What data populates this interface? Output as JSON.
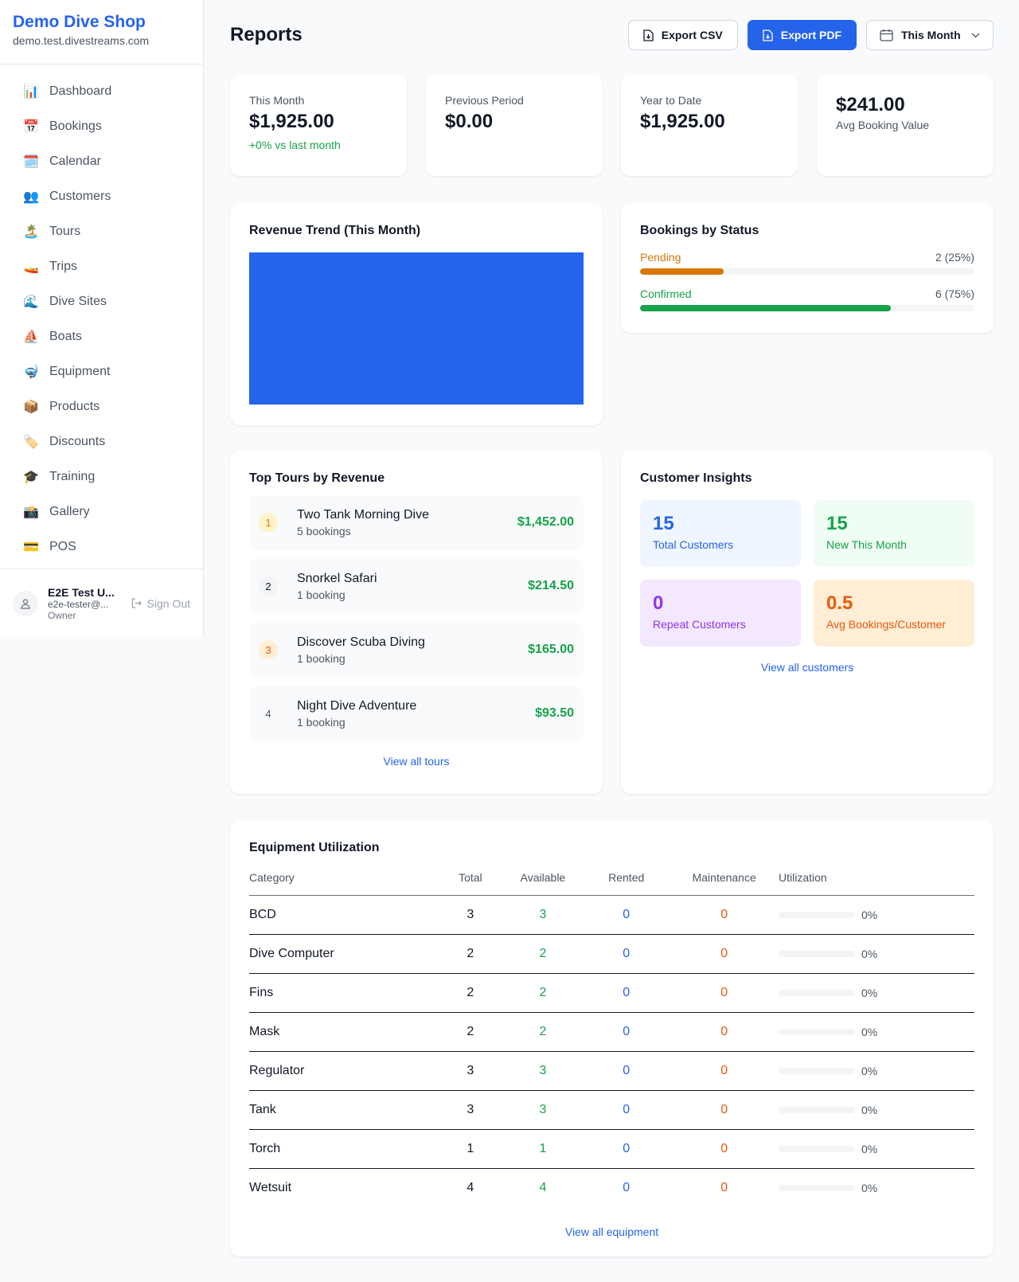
{
  "sidebar": {
    "shop_name": "Demo Dive Shop",
    "domain": "demo.test.divestreams.com",
    "items": [
      {
        "label": "Dashboard",
        "icon": "📊"
      },
      {
        "label": "Bookings",
        "icon": "📅"
      },
      {
        "label": "Calendar",
        "icon": "🗓️"
      },
      {
        "label": "Customers",
        "icon": "👥"
      },
      {
        "label": "Tours",
        "icon": "🏝️"
      },
      {
        "label": "Trips",
        "icon": "🚤"
      },
      {
        "label": "Dive Sites",
        "icon": "🌊"
      },
      {
        "label": "Boats",
        "icon": "⛵"
      },
      {
        "label": "Equipment",
        "icon": "🤿"
      },
      {
        "label": "Products",
        "icon": "📦"
      },
      {
        "label": "Discounts",
        "icon": "🏷️"
      },
      {
        "label": "Training",
        "icon": "🎓"
      },
      {
        "label": "Gallery",
        "icon": "📸"
      },
      {
        "label": "POS",
        "icon": "💳"
      }
    ],
    "user": {
      "name": "E2E Test U...",
      "email": "e2e-tester@...",
      "role": "Owner",
      "sign_out": "Sign Out"
    }
  },
  "header": {
    "title": "Reports",
    "export_csv": "Export CSV",
    "export_pdf": "Export PDF",
    "period": "This Month"
  },
  "stats": [
    {
      "label": "This Month",
      "value": "$1,925.00",
      "change": "+0% vs last month"
    },
    {
      "label": "Previous Period",
      "value": "$0.00"
    },
    {
      "label": "Year to Date",
      "value": "$1,925.00"
    },
    {
      "value": "$241.00",
      "label": "Avg Booking Value"
    }
  ],
  "revenue_trend": {
    "title": "Revenue Trend (This Month)",
    "bar_color": "#2563eb"
  },
  "bookings_status": {
    "title": "Bookings by Status",
    "rows": [
      {
        "label": "Pending",
        "count": "2 (25%)",
        "percent": 25,
        "color": "#d97706"
      },
      {
        "label": "Confirmed",
        "count": "6 (75%)",
        "percent": 75,
        "color": "#16a34a"
      }
    ]
  },
  "top_tours": {
    "title": "Top Tours by Revenue",
    "link": "View all tours",
    "items": [
      {
        "rank": "1",
        "name": "Two Tank Morning Dive",
        "bookings": "5 bookings",
        "revenue": "$1,452.00"
      },
      {
        "rank": "2",
        "name": "Snorkel Safari",
        "bookings": "1 booking",
        "revenue": "$214.50"
      },
      {
        "rank": "3",
        "name": "Discover Scuba Diving",
        "bookings": "1 booking",
        "revenue": "$165.00"
      },
      {
        "rank": "4",
        "name": "Night Dive Adventure",
        "bookings": "1 booking",
        "revenue": "$93.50"
      }
    ]
  },
  "customer_insights": {
    "title": "Customer Insights",
    "link": "View all customers",
    "tiles": [
      {
        "value": "15",
        "label": "Total Customers"
      },
      {
        "value": "15",
        "label": "New This Month"
      },
      {
        "value": "0",
        "label": "Repeat Customers"
      },
      {
        "value": "0.5",
        "label": "Avg Bookings/Customer"
      }
    ]
  },
  "equipment": {
    "title": "Equipment Utilization",
    "link": "View all equipment",
    "columns": [
      "Category",
      "Total",
      "Available",
      "Rented",
      "Maintenance",
      "Utilization"
    ],
    "rows": [
      [
        "BCD",
        "3",
        "3",
        "0",
        "0",
        "0%"
      ],
      [
        "Dive Computer",
        "2",
        "2",
        "0",
        "0",
        "0%"
      ],
      [
        "Fins",
        "2",
        "2",
        "0",
        "0",
        "0%"
      ],
      [
        "Mask",
        "2",
        "2",
        "0",
        "0",
        "0%"
      ],
      [
        "Regulator",
        "3",
        "3",
        "0",
        "0",
        "0%"
      ],
      [
        "Tank",
        "3",
        "3",
        "0",
        "0",
        "0%"
      ],
      [
        "Torch",
        "1",
        "1",
        "0",
        "0",
        "0%"
      ],
      [
        "Wetsuit",
        "4",
        "4",
        "0",
        "0",
        "0%"
      ]
    ]
  }
}
